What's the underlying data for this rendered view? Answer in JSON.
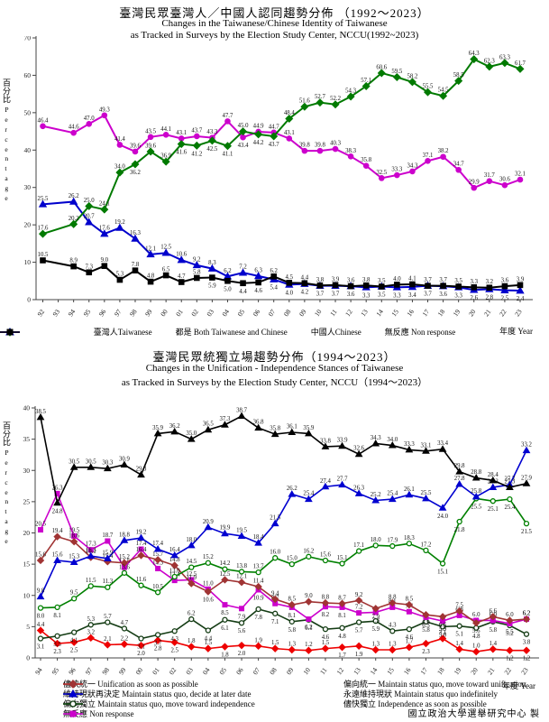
{
  "page": {
    "footer": "國立政治大學選舉研究中心 製",
    "year_axis_label": "年度 Year",
    "percent_axis_zh": "百分比",
    "percent_axis_en": "Percentage"
  },
  "chart_data": [
    {
      "type": "line",
      "title_zh": "臺灣民眾臺灣人／中國人認同趨勢分佈 （1992～2023）",
      "title_en_1": "Changes in the Taiwanese/Chinese Identity of Taiwanese",
      "title_en_2": "as Tracked in Surveys by the Election Study Center, NCCU(1992~2023)",
      "ylim": [
        0,
        70
      ],
      "ytick": 10,
      "grid": false,
      "legend_position": "bottom",
      "categories": [
        "92",
        "93",
        "94",
        "95",
        "96",
        "97",
        "98",
        "99",
        "00",
        "01",
        "02",
        "03",
        "04",
        "05",
        "06",
        "07",
        "08",
        "09",
        "10",
        "11",
        "12",
        "13",
        "14",
        "15",
        "16",
        "17",
        "18",
        "19",
        "20",
        "21",
        "22",
        "23"
      ],
      "skip_category_index": 1,
      "series": [
        {
          "key": "chinese",
          "label": "中國人Chinese",
          "color": "#0000cc",
          "marker": "triangle",
          "open": false,
          "values": [
            25.5,
            26.2,
            20.7,
            17.6,
            19.2,
            16.3,
            12.1,
            12.5,
            10.6,
            9.2,
            8.3,
            6.2,
            7.2,
            6.3,
            5.4,
            4.0,
            4.2,
            3.7,
            3.7,
            3.6,
            3.3,
            3.5,
            3.3,
            3.4,
            3.7,
            3.6,
            3.3,
            2.6,
            2.8,
            2.5,
            2.4
          ],
          "label_below": [
            14,
            15,
            16,
            17,
            18,
            19,
            20,
            21,
            22,
            23,
            24,
            25,
            26,
            27,
            28,
            29,
            30
          ]
        },
        {
          "key": "nonresponse",
          "label": "無反應 Non response",
          "color": "#000000",
          "marker": "square",
          "open": false,
          "values": [
            10.5,
            8.9,
            7.3,
            9.0,
            5.3,
            7.8,
            4.8,
            6.5,
            4.7,
            5.8,
            5.9,
            5.0,
            4.4,
            4.6,
            6.2,
            4.5,
            4.4,
            3.8,
            3.9,
            3.6,
            3.8,
            3.5,
            4.0,
            4.1,
            3.7,
            3.7,
            3.5,
            3.3,
            3.2,
            3.6,
            3.9
          ],
          "label_below": [
            10,
            11,
            12,
            13
          ]
        },
        {
          "key": "both",
          "label": "都是 Both Taiwanese and Chinese",
          "color": "#cc00cc",
          "marker": "circle",
          "open": false,
          "values": [
            46.4,
            44.6,
            47.0,
            49.3,
            41.4,
            39.6,
            43.5,
            44.1,
            43.1,
            43.7,
            43.3,
            47.7,
            43.4,
            44.9,
            44.7,
            43.1,
            39.8,
            39.8,
            40.3,
            38.3,
            35.8,
            32.5,
            33.3,
            34.3,
            37.1,
            38.2,
            34.7,
            29.9,
            31.7,
            30.6,
            32.1
          ],
          "label_below": [
            12
          ]
        },
        {
          "key": "taiwanese",
          "label": "臺灣人Taiwanese",
          "color": "#007a00",
          "marker": "diamond",
          "open": false,
          "values": [
            17.6,
            20.2,
            25.0,
            24.1,
            34.0,
            36.2,
            39.6,
            36.9,
            41.6,
            41.2,
            42.5,
            41.1,
            45.0,
            44.2,
            43.7,
            48.4,
            51.6,
            52.7,
            52.2,
            54.3,
            57.1,
            60.6,
            59.5,
            58.2,
            55.5,
            54.5,
            58.5,
            64.3,
            62.3,
            63.3,
            61.7
          ],
          "label_below": [
            5,
            8,
            9,
            10,
            11,
            13,
            14
          ]
        }
      ],
      "legend_order": [
        "taiwanese",
        "both",
        "chinese",
        "nonresponse"
      ]
    },
    {
      "type": "line",
      "title_zh": "臺灣民眾統獨立場趨勢分佈（1994～2023）",
      "title_en_1": "Changes in the Unification - Independence Stances of Taiwanese",
      "title_en_2": "as Tracked in Surveys by the Election Study Center, NCCU（1994～2023）",
      "ylim": [
        0,
        40
      ],
      "ytick": 5,
      "grid": false,
      "legend_position": "bottom",
      "categories": [
        "94",
        "95",
        "96",
        "97",
        "98",
        "99",
        "00",
        "01",
        "02",
        "03",
        "04",
        "05",
        "06",
        "07",
        "08",
        "09",
        "10",
        "11",
        "12",
        "13",
        "14",
        "15",
        "16",
        "17",
        "18",
        "19",
        "20",
        "21",
        "22",
        "23"
      ],
      "skip_category_index": -1,
      "series": [
        {
          "key": "unification-asap",
          "label": "儘快統一 Unification as soon as possible",
          "color": "#ee0000",
          "marker": "diamond",
          "open": false,
          "values": [
            4.4,
            2.3,
            2.5,
            3.2,
            2.1,
            2.2,
            2.0,
            2.8,
            2.5,
            1.8,
            1.5,
            1.8,
            2.0,
            1.9,
            1.5,
            1.3,
            1.2,
            1.5,
            1.7,
            1.9,
            1.3,
            1.3,
            1.7,
            2.3,
            3.1,
            1.4,
            1.0,
            1.4,
            1.2,
            1.2
          ],
          "label_below": [
            1,
            2,
            6,
            7,
            8,
            11,
            12,
            18,
            19,
            23,
            28,
            29
          ]
        },
        {
          "key": "independence-asap",
          "label": "儘快獨立 Independence as soon as possible",
          "color": "#143c14",
          "marker": "circle",
          "open": true,
          "values": [
            3.1,
            3.5,
            4.1,
            5.3,
            5.7,
            4.7,
            3.1,
            3.7,
            4.3,
            6.2,
            4.4,
            6.1,
            5.6,
            7.8,
            7.1,
            5.8,
            6.1,
            4.6,
            4.8,
            5.7,
            5.9,
            4.3,
            4.6,
            5.8,
            5.0,
            5.1,
            4.8,
            5.8,
            5.2,
            3.8
          ],
          "label_below": [
            0,
            1,
            2,
            6,
            7,
            8,
            10,
            11,
            12,
            13,
            14,
            15,
            16,
            17,
            18,
            19,
            20,
            22,
            23,
            24,
            25,
            26,
            27,
            28,
            29
          ]
        },
        {
          "key": "nonresponse",
          "label": "無反應 Non response",
          "color": "#cc00cc",
          "marker": "square",
          "open": false,
          "values": [
            20.5,
            26.3,
            19.5,
            17.3,
            18.7,
            14.5,
            17.4,
            14.3,
            12.4,
            12.5,
            11.0,
            8.5,
            7.9,
            10.9,
            8.7,
            8.1,
            6.2,
            8.2,
            8.1,
            7.2,
            7.3,
            8.1,
            7.4,
            6.5,
            5.9,
            6.8,
            6.0,
            6.0,
            5.5,
            6.2
          ],
          "label_below": [
            11,
            12,
            13,
            15,
            16,
            17,
            18,
            20,
            23,
            24,
            28
          ]
        },
        {
          "key": "lean-unification",
          "label": "偏向統一 Maintain status quo, move toward unification",
          "color": "#a03434",
          "marker": "diamond",
          "open": false,
          "values": [
            15.6,
            19.4,
            18.6,
            16.1,
            15.4,
            15.2,
            16.4,
            15.7,
            14.8,
            11.9,
            10.6,
            12.5,
            12.1,
            11.4,
            9.4,
            8.5,
            9.0,
            8.8,
            8.7,
            9.2,
            7.9,
            8.8,
            8.5,
            6.9,
            6.6,
            7.5,
            5.6,
            6.6,
            6.0,
            6.2
          ],
          "label_below": [
            10,
            20,
            23,
            24,
            26
          ]
        },
        {
          "key": "lean-independence",
          "label": "偏向獨立 Maintain status quo, move toward independence",
          "color": "#008000",
          "marker": "circle",
          "open": true,
          "values": [
            8.0,
            8.1,
            9.5,
            11.5,
            11.3,
            13.6,
            11.6,
            10.5,
            13.0,
            14.5,
            15.2,
            14.2,
            13.8,
            13.7,
            16.0,
            15.0,
            16.2,
            15.6,
            15.1,
            17.1,
            18.0,
            17.9,
            18.3,
            17.2,
            15.1,
            21.8,
            25.5,
            25.1,
            25.4,
            21.5
          ],
          "label_below": [
            0,
            1,
            24,
            25,
            26,
            27,
            28,
            29
          ]
        },
        {
          "key": "sq-forever",
          "label": "永遠維持現狀 Maintain status quo indefinitely",
          "color": "#0000d0",
          "marker": "triangle",
          "open": false,
          "values": [
            9.8,
            15.6,
            15.3,
            16.3,
            15.9,
            18.8,
            19.2,
            17.4,
            16.4,
            18.0,
            20.9,
            19.9,
            19.5,
            18.4,
            21.5,
            26.2,
            25.4,
            27.4,
            27.7,
            26.3,
            25.2,
            25.4,
            26.1,
            25.5,
            24.0,
            27.8,
            25.8,
            27.3,
            27.7,
            33.2
          ],
          "label_below": [
            24
          ]
        },
        {
          "key": "sq-decide-later",
          "label": "維持現狀再決定 Maintain status quo, decide at later date",
          "color": "#000000",
          "marker": "triangle",
          "open": false,
          "values": [
            38.5,
            24.8,
            30.5,
            30.5,
            30.3,
            30.9,
            29.3,
            35.9,
            36.2,
            35.0,
            36.5,
            37.3,
            38.7,
            36.8,
            35.8,
            36.1,
            35.9,
            33.8,
            33.9,
            32.6,
            34.3,
            34.0,
            33.3,
            33.1,
            33.4,
            29.8,
            28.8,
            28.4,
            27.3,
            27.9
          ],
          "label_below": [
            1
          ]
        }
      ],
      "legend_order": [
        "unification-asap",
        "lean-unification",
        "sq-decide-later",
        "sq-forever",
        "lean-independence",
        "independence-asap",
        "nonresponse"
      ]
    }
  ]
}
